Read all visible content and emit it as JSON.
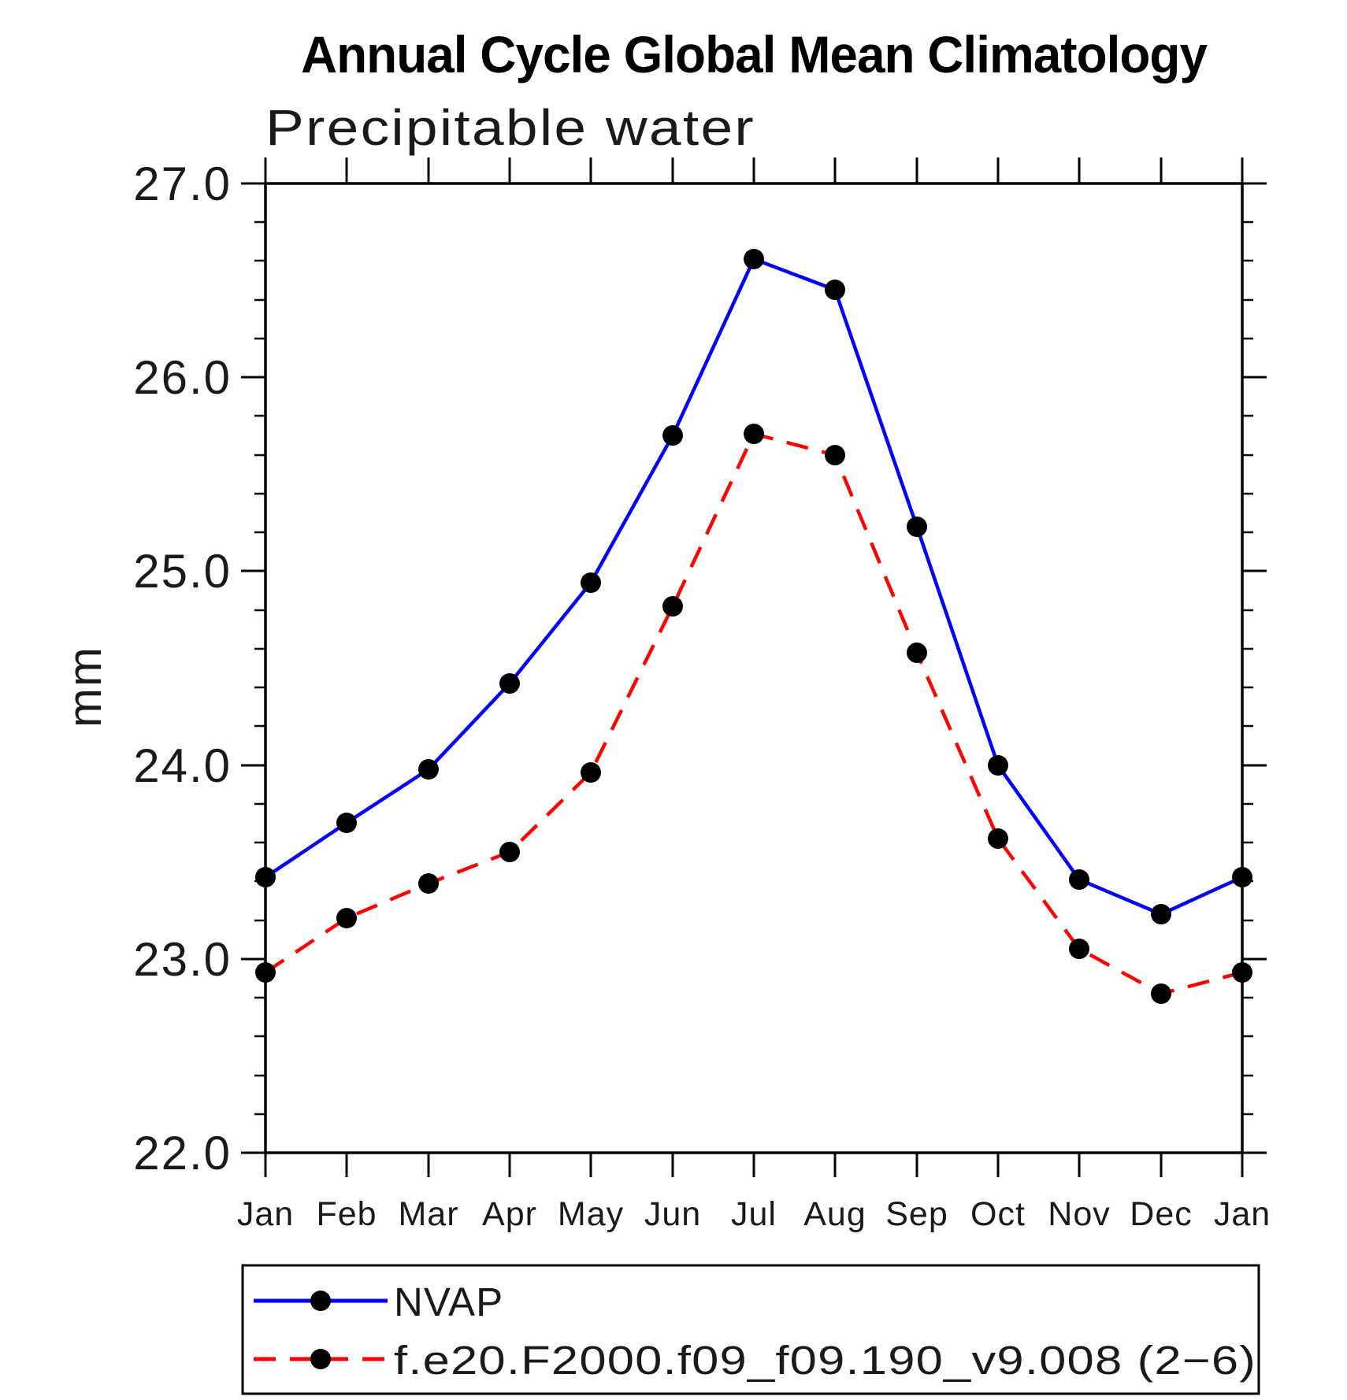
{
  "header": {
    "title": "Annual Cycle Global Mean Climatology",
    "subtitle": "Precipitable water"
  },
  "chart_data": {
    "type": "line",
    "title": "Annual Cycle Global Mean Climatology",
    "subtitle": "Precipitable water",
    "ylabel": "mm",
    "xlabel": "",
    "categories": [
      "Jan",
      "Feb",
      "Mar",
      "Apr",
      "May",
      "Jun",
      "Jul",
      "Aug",
      "Sep",
      "Oct",
      "Nov",
      "Dec",
      "Jan"
    ],
    "ylim": [
      22.0,
      27.0
    ],
    "ytick_labels": [
      "22.0",
      "23.0",
      "24.0",
      "25.0",
      "26.0",
      "27.0"
    ],
    "ytick_major_step": 1.0,
    "ytick_minor_step": 0.2,
    "grid": false,
    "legend_position": "bottom",
    "series": [
      {
        "name": "NVAP",
        "color": "#0000ff",
        "style": "solid",
        "marker": "circle",
        "marker_color": "#000000",
        "values": [
          23.42,
          23.7,
          23.98,
          24.42,
          24.94,
          25.7,
          26.61,
          26.45,
          25.23,
          24.0,
          23.41,
          23.23,
          23.42
        ]
      },
      {
        "name": "f.e20.F2000.f09_f09.190_v9.008 (2−6)",
        "color": "#ff0000",
        "style": "dashed",
        "marker": "circle",
        "marker_color": "#000000",
        "values": [
          22.93,
          23.21,
          23.39,
          23.55,
          23.96,
          24.82,
          25.71,
          25.6,
          24.58,
          23.62,
          23.05,
          22.82,
          22.93
        ]
      }
    ]
  }
}
